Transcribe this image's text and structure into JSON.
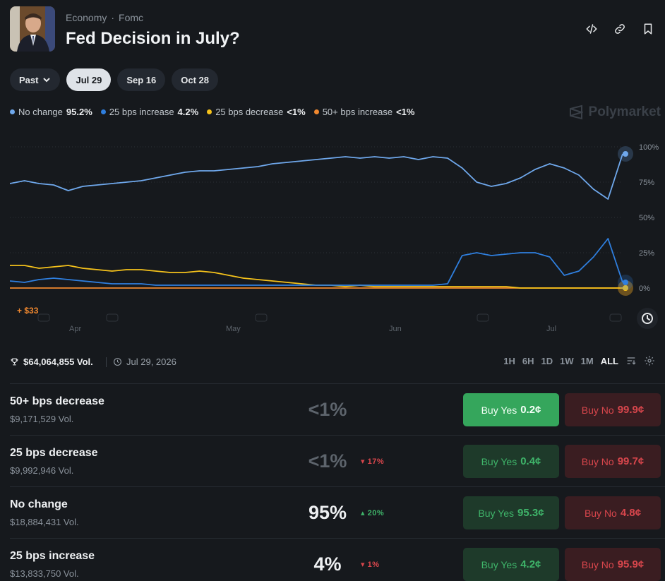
{
  "header": {
    "category": "Economy",
    "subcategory": "Fomc",
    "title": "Fed Decision in July?",
    "actions": [
      "embed-icon",
      "link-icon",
      "bookmark-icon"
    ]
  },
  "tabs": [
    {
      "label": "Past",
      "dropdown": true,
      "active": false
    },
    {
      "label": "Jul 29",
      "active": true
    },
    {
      "label": "Sep 16",
      "active": false
    },
    {
      "label": "Oct 28",
      "active": false
    }
  ],
  "legend": [
    {
      "label": "No change",
      "value": "95.2%",
      "color": "#6fa8ec"
    },
    {
      "label": "25 bps increase",
      "value": "4.2%",
      "color": "#2f7fdf"
    },
    {
      "label": "25 bps decrease",
      "value": "<1%",
      "color": "#f5c21b"
    },
    {
      "label": "50+ bps increase",
      "value": "<1%",
      "color": "#f0882f"
    }
  ],
  "brand": "Polymarket",
  "chart_data": {
    "type": "line",
    "x_ticks": [
      "Apr",
      "May",
      "Jun",
      "Jul"
    ],
    "y_ticks": [
      "100%",
      "75%",
      "50%",
      "25%",
      "0%"
    ],
    "ylim": [
      0,
      100
    ],
    "grid": true,
    "series": [
      {
        "name": "No change",
        "color": "#6fa8ec",
        "values": [
          74,
          76,
          74,
          73,
          69,
          72,
          73,
          74,
          75,
          76,
          78,
          80,
          82,
          83,
          83,
          84,
          85,
          86,
          88,
          89,
          90,
          91,
          92,
          93,
          92,
          93,
          92,
          93,
          91,
          93,
          92,
          85,
          75,
          72,
          74,
          78,
          84,
          88,
          85,
          80,
          70,
          63,
          95
        ]
      },
      {
        "name": "25 bps increase",
        "color": "#2f7fdf",
        "values": [
          5,
          4,
          6,
          7,
          6,
          5,
          4,
          3,
          3,
          3,
          2,
          2,
          2,
          2,
          2,
          2,
          2,
          2,
          2,
          2,
          2,
          2,
          2,
          2,
          2,
          2,
          2,
          2,
          2,
          2,
          3,
          23,
          25,
          23,
          24,
          25,
          25,
          22,
          9,
          12,
          22,
          35,
          4
        ]
      },
      {
        "name": "25 bps decrease",
        "color": "#f5c21b",
        "values": [
          16,
          16,
          14,
          15,
          16,
          14,
          13,
          12,
          13,
          13,
          12,
          11,
          11,
          12,
          11,
          9,
          7,
          6,
          5,
          4,
          3,
          2,
          2,
          1,
          2,
          1,
          1,
          1,
          1,
          1,
          1,
          1,
          1,
          1,
          1,
          0,
          0,
          0,
          0,
          0,
          0,
          0,
          0
        ]
      },
      {
        "name": "50+ bps increase",
        "color": "#f0882f",
        "values": [
          0,
          0,
          0,
          0,
          0,
          0,
          0,
          0,
          0,
          0,
          0,
          0,
          0,
          0,
          0,
          0,
          0,
          0,
          0,
          0,
          0,
          0,
          0,
          0,
          0,
          0,
          0,
          0,
          0,
          0,
          0,
          0,
          0,
          0,
          0,
          0,
          0,
          0,
          0,
          0,
          0,
          0,
          0
        ]
      }
    ],
    "annotation": "+ $33"
  },
  "stats": {
    "volume": "$64,064,855 Vol.",
    "end_date": "Jul 29, 2026",
    "ranges": [
      "1H",
      "6H",
      "1D",
      "1W",
      "1M",
      "ALL"
    ],
    "active_range": "ALL"
  },
  "outcomes": [
    {
      "name": "50+ bps decrease",
      "volume": "$9,171,529 Vol.",
      "pct": "<1%",
      "change": "",
      "direction": "",
      "yes_label": "Buy Yes",
      "yes_price": "0.2¢",
      "no_label": "Buy No",
      "no_price": "99.9¢",
      "yes_active": true
    },
    {
      "name": "25 bps decrease",
      "volume": "$9,992,946 Vol.",
      "pct": "<1%",
      "change": "▾ 17%",
      "direction": "down",
      "yes_label": "Buy Yes",
      "yes_price": "0.4¢",
      "no_label": "Buy No",
      "no_price": "99.7¢",
      "yes_active": false
    },
    {
      "name": "No change",
      "volume": "$18,884,431 Vol.",
      "pct": "95%",
      "change": "▴ 20%",
      "direction": "up",
      "yes_label": "Buy Yes",
      "yes_price": "95.3¢",
      "no_label": "Buy No",
      "no_price": "4.8¢",
      "yes_active": false
    },
    {
      "name": "25 bps increase",
      "volume": "$13,833,750 Vol.",
      "pct": "4%",
      "change": "▾ 1%",
      "direction": "down",
      "yes_label": "Buy Yes",
      "yes_price": "4.2¢",
      "no_label": "Buy No",
      "no_price": "95.9¢",
      "yes_active": false
    }
  ]
}
